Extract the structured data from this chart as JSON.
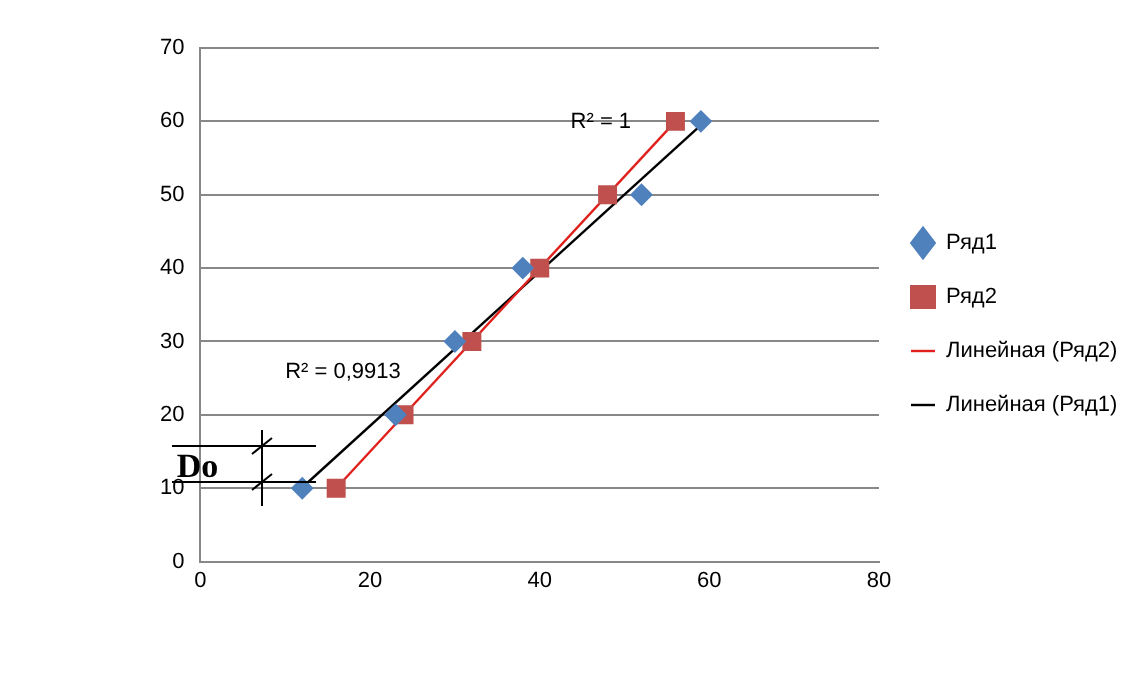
{
  "chart_data": {
    "type": "scatter",
    "series": [
      {
        "name": "Ряд1",
        "color": "#4f81bd",
        "marker": "diamond",
        "x": [
          12,
          23,
          30,
          38,
          52,
          59
        ],
        "values": [
          10,
          20,
          30,
          40,
          50,
          60
        ]
      },
      {
        "name": "Ряд2",
        "color": "#c0504d",
        "marker": "square",
        "x": [
          16,
          24,
          32,
          40,
          48,
          56
        ],
        "values": [
          10,
          20,
          30,
          40,
          50,
          60
        ]
      },
      {
        "name": "Линейная (Ряд2)",
        "type": "line",
        "color": "#e0201c",
        "marker": "none",
        "x": [
          16,
          56
        ],
        "values": [
          10,
          60
        ]
      },
      {
        "name": "Линейная (Ряд1)",
        "type": "line",
        "color": "#000000",
        "marker": "none",
        "x": [
          12,
          59
        ],
        "values": [
          10.1,
          59.5
        ]
      }
    ],
    "xlim": [
      0,
      80
    ],
    "xticks": [
      0,
      20,
      40,
      60,
      80
    ],
    "ylim": [
      0,
      70
    ],
    "yticks": [
      0,
      10,
      20,
      30,
      40,
      50,
      60,
      70
    ],
    "grid": "y",
    "legend": "right",
    "annotations": [
      "R² = 1",
      "R² = 0,9913",
      {
        "text": "Do",
        "x": 12,
        "y": 10
      }
    ]
  }
}
